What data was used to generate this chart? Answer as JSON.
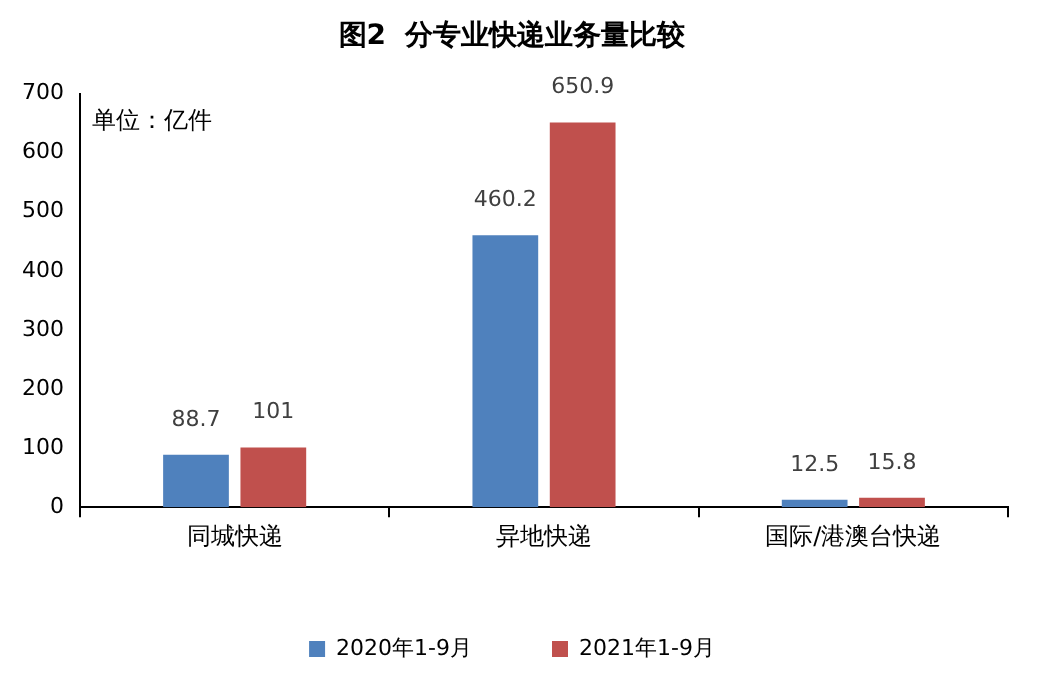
{
  "chart_data": {
    "type": "bar",
    "title": "图2  分专业快递业务量比较",
    "annotations": [
      "单位：亿件"
    ],
    "categories": [
      "同城快递",
      "异地快递",
      "国际/港澳台快递"
    ],
    "series": [
      {
        "name": "2020年1-9月",
        "color": "#4f81bd",
        "values": [
          88.7,
          460.2,
          12.5
        ]
      },
      {
        "name": "2021年1-9月",
        "color": "#c0504d",
        "values": [
          101,
          650.9,
          15.8
        ]
      }
    ],
    "ylim": [
      0,
      700
    ],
    "yticks": [
      0,
      100,
      200,
      300,
      400,
      500,
      600,
      700
    ],
    "grid": false,
    "legend": "bottom",
    "data_labels": true
  }
}
